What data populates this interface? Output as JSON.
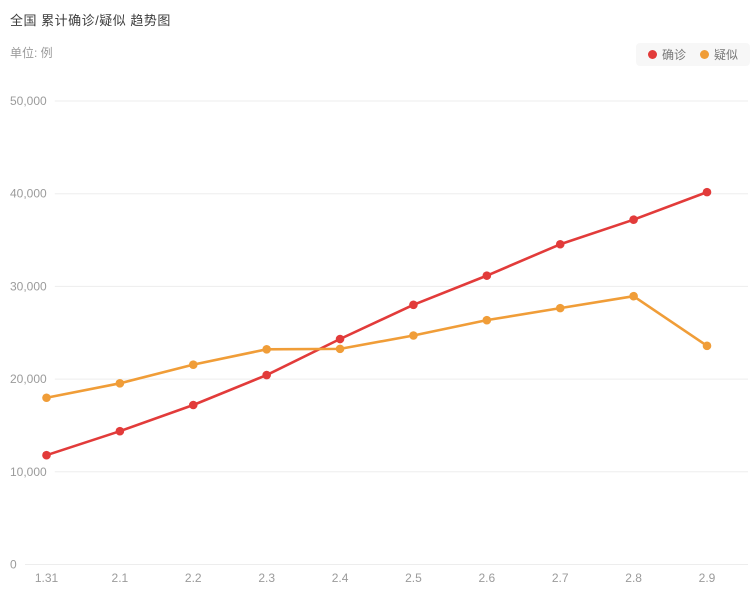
{
  "title": "全国 累计确诊/疑似 趋势图",
  "subtitle": "单位: 例",
  "legend": {
    "items": [
      {
        "label": "确诊",
        "color": "#e23b3a"
      },
      {
        "label": "疑似",
        "color": "#f09d38"
      }
    ]
  },
  "chart_data": {
    "type": "line",
    "title": "全国 累计确诊/疑似 趋势图",
    "unit_label": "单位: 例",
    "categories": [
      "1.31",
      "2.1",
      "2.2",
      "2.3",
      "2.4",
      "2.5",
      "2.6",
      "2.7",
      "2.8",
      "2.9"
    ],
    "series": [
      {
        "name": "确诊",
        "color": "#e23b3a",
        "values": [
          11791,
          14380,
          17205,
          20438,
          24324,
          28018,
          31161,
          34546,
          37198,
          40171
        ]
      },
      {
        "name": "疑似",
        "color": "#f09d38",
        "values": [
          17988,
          19544,
          21558,
          23214,
          23260,
          24702,
          26359,
          27657,
          28942,
          23589
        ]
      }
    ],
    "ylim": [
      0,
      50000
    ],
    "y_ticks": [
      0,
      10000,
      20000,
      30000,
      40000,
      50000
    ],
    "y_tick_labels": [
      "0",
      "10,000",
      "20,000",
      "30,000",
      "40,000",
      "50,000"
    ],
    "grid": true,
    "legend_position": "top-right"
  }
}
